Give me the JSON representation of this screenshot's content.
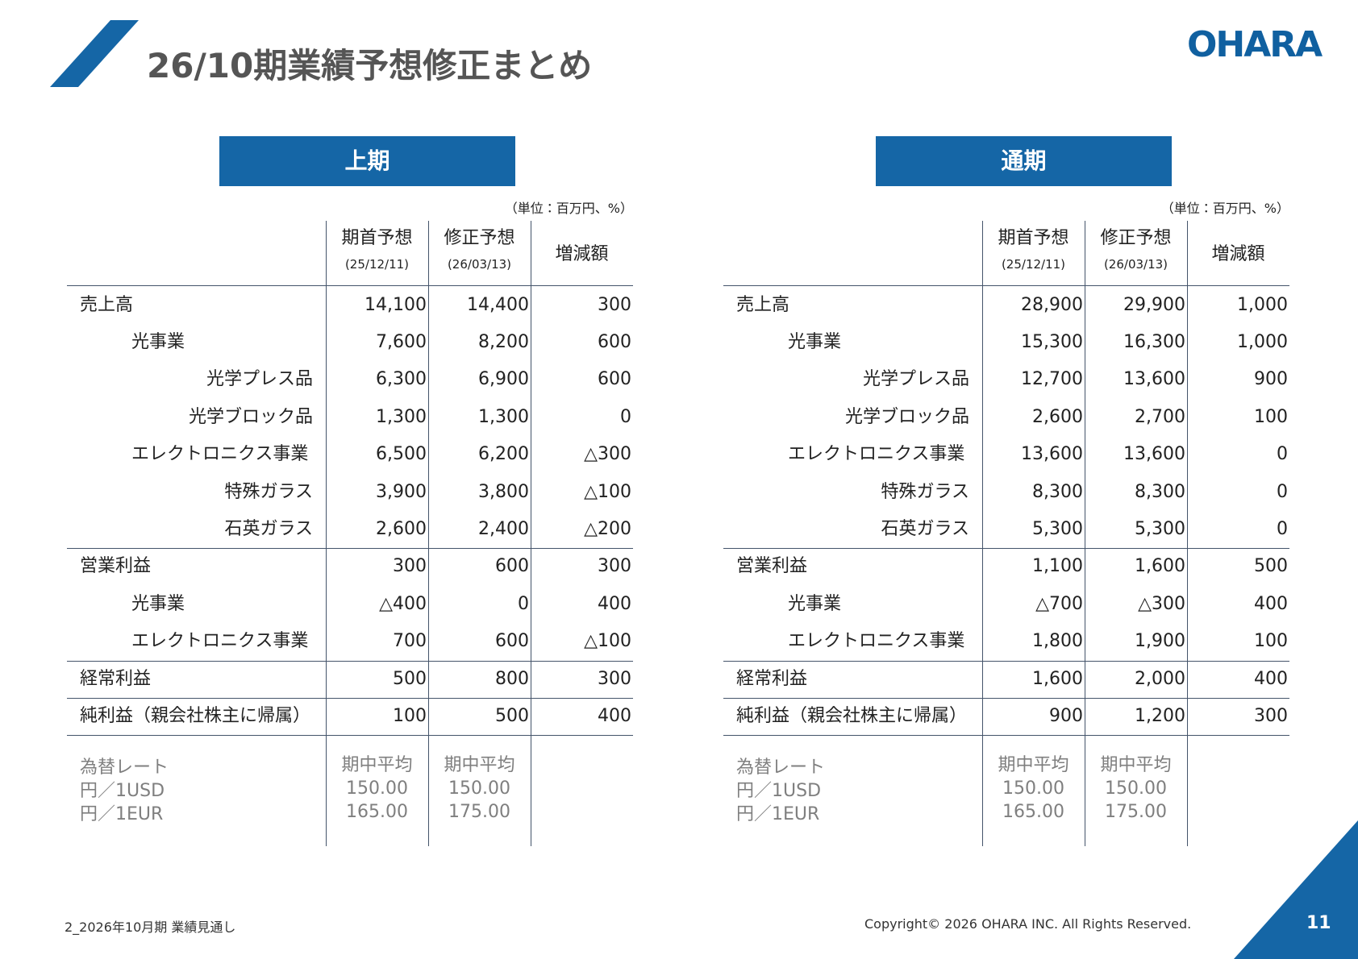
{
  "header": {
    "title": "26/10期業績予想修正まとめ",
    "logo": "OHARA"
  },
  "tables": [
    {
      "title": "上期",
      "unit": "（単位：百万円、%）",
      "columns": [
        {
          "label": "期首予想",
          "date": "(25/12/11)"
        },
        {
          "label": "修正予想",
          "date": "(26/03/13)"
        },
        {
          "label": "増減額"
        }
      ],
      "rows": [
        {
          "label": "売上高",
          "values": [
            "14,100",
            "14,400",
            "300"
          ]
        },
        {
          "label": "光事業",
          "values": [
            "7,600",
            "8,200",
            "600"
          ]
        },
        {
          "label": "光学プレス品",
          "values": [
            "6,300",
            "6,900",
            "600"
          ]
        },
        {
          "label": "光学ブロック品",
          "values": [
            "1,300",
            "1,300",
            "0"
          ]
        },
        {
          "label": "エレクトロニクス事業",
          "values": [
            "6,500",
            "6,200",
            "△300"
          ]
        },
        {
          "label": "特殊ガラス",
          "values": [
            "3,900",
            "3,800",
            "△100"
          ]
        },
        {
          "label": "石英ガラス",
          "values": [
            "2,600",
            "2,400",
            "△200"
          ]
        },
        {
          "label": "営業利益",
          "values": [
            "300",
            "600",
            "300"
          ]
        },
        {
          "label": "光事業",
          "values": [
            "△400",
            "0",
            "400"
          ]
        },
        {
          "label": "エレクトロニクス事業",
          "values": [
            "700",
            "600",
            "△100"
          ]
        },
        {
          "label": "経常利益",
          "values": [
            "500",
            "800",
            "300"
          ]
        },
        {
          "label": "純利益（親会社株主に帰属）",
          "values": [
            "100",
            "500",
            "400"
          ]
        }
      ],
      "fx": {
        "labels": [
          "為替レート",
          "円／1USD",
          "円／1EUR"
        ],
        "columns": [
          [
            "期中平均",
            "150.00",
            "165.00"
          ],
          [
            "期中平均",
            "150.00",
            "175.00"
          ]
        ]
      }
    },
    {
      "title": "通期",
      "unit": "（単位：百万円、%）",
      "columns": [
        {
          "label": "期首予想",
          "date": "(25/12/11)"
        },
        {
          "label": "修正予想",
          "date": "(26/03/13)"
        },
        {
          "label": "増減額"
        }
      ],
      "rows": [
        {
          "label": "売上高",
          "values": [
            "28,900",
            "29,900",
            "1,000"
          ]
        },
        {
          "label": "光事業",
          "values": [
            "15,300",
            "16,300",
            "1,000"
          ]
        },
        {
          "label": "光学プレス品",
          "values": [
            "12,700",
            "13,600",
            "900"
          ]
        },
        {
          "label": "光学ブロック品",
          "values": [
            "2,600",
            "2,700",
            "100"
          ]
        },
        {
          "label": "エレクトロニクス事業",
          "values": [
            "13,600",
            "13,600",
            "0"
          ]
        },
        {
          "label": "特殊ガラス",
          "values": [
            "8,300",
            "8,300",
            "0"
          ]
        },
        {
          "label": "石英ガラス",
          "values": [
            "5,300",
            "5,300",
            "0"
          ]
        },
        {
          "label": "営業利益",
          "values": [
            "1,100",
            "1,600",
            "500"
          ]
        },
        {
          "label": "光事業",
          "values": [
            "△700",
            "△300",
            "400"
          ]
        },
        {
          "label": "エレクトロニクス事業",
          "values": [
            "1,800",
            "1,900",
            "100"
          ]
        },
        {
          "label": "経常利益",
          "values": [
            "1,600",
            "2,000",
            "400"
          ]
        },
        {
          "label": "純利益（親会社株主に帰属）",
          "values": [
            "900",
            "1,200",
            "300"
          ]
        }
      ],
      "fx": {
        "labels": [
          "為替レート",
          "円／1USD",
          "円／1EUR"
        ],
        "columns": [
          [
            "期中平均",
            "150.00",
            "165.00"
          ],
          [
            "期中平均",
            "150.00",
            "175.00"
          ]
        ]
      }
    }
  ],
  "footer": {
    "section": "2_2026年10月期 業績見通し",
    "copyright": "Copyright© 2026 OHARA INC. All Rights Reserved.",
    "page": "11"
  }
}
